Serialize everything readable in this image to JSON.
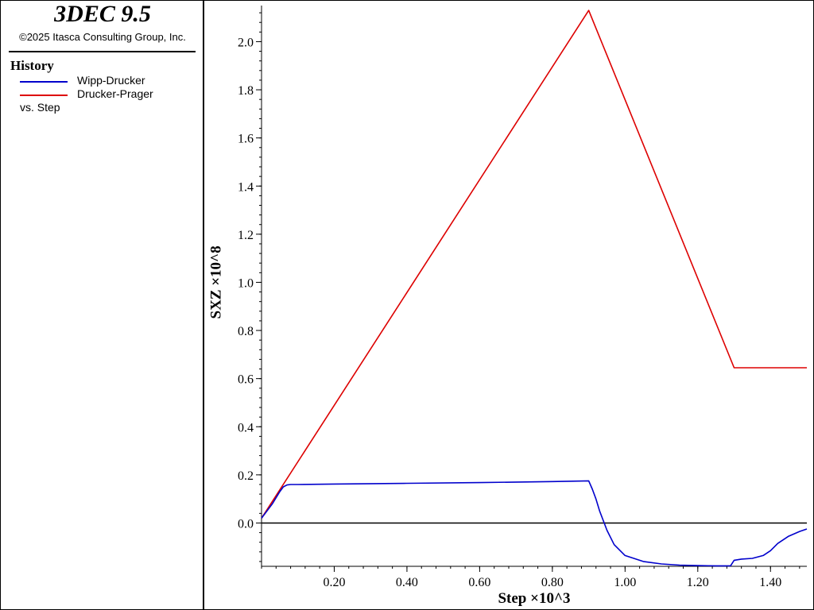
{
  "app": {
    "title": "3DEC 9.5",
    "copyright": "©2025 Itasca Consulting Group, Inc."
  },
  "legend": {
    "heading": "History",
    "items": [
      {
        "label": "Wipp-Drucker",
        "color": "#0000cc"
      },
      {
        "label": "Drucker-Prager",
        "color": "#dd0000"
      }
    ],
    "vs_label": "vs. Step"
  },
  "chart_data": {
    "type": "line",
    "xlabel": "Step ×10^3",
    "ylabel": "SXZ ×10^8",
    "xlim": [
      0.0,
      1.5
    ],
    "ylim": [
      -0.18,
      2.15
    ],
    "xticks": [
      0.2,
      0.4,
      0.6,
      0.8,
      1.0,
      1.2,
      1.4
    ],
    "xtick_labels": [
      "0.20",
      "0.40",
      "0.60",
      "0.80",
      "1.00",
      "1.20",
      "1.40"
    ],
    "yticks": [
      0.0,
      0.2,
      0.4,
      0.6,
      0.8,
      1.0,
      1.2,
      1.4,
      1.6,
      1.8,
      2.0
    ],
    "ytick_labels": [
      "0.0",
      "0.2",
      "0.4",
      "0.6",
      "0.8",
      "1.0",
      "1.2",
      "1.4",
      "1.6",
      "1.8",
      "2.0"
    ],
    "zero_line": true,
    "grid": false,
    "series": [
      {
        "name": "Drucker-Prager",
        "color": "#dd0000",
        "x": [
          0.0,
          0.9,
          1.3,
          1.5
        ],
        "y": [
          0.02,
          2.13,
          0.645,
          0.645
        ]
      },
      {
        "name": "Wipp-Drucker",
        "color": "#0000cc",
        "x": [
          0.0,
          0.03,
          0.05,
          0.06,
          0.07,
          0.08,
          0.1,
          0.2,
          0.4,
          0.6,
          0.8,
          0.9,
          0.91,
          0.92,
          0.93,
          0.94,
          0.95,
          0.97,
          1.0,
          1.05,
          1.1,
          1.15,
          1.2,
          1.25,
          1.29,
          1.3,
          1.32,
          1.35,
          1.38,
          1.4,
          1.42,
          1.45,
          1.48,
          1.5
        ],
        "y": [
          0.02,
          0.08,
          0.13,
          0.15,
          0.158,
          0.16,
          0.16,
          0.162,
          0.165,
          0.168,
          0.172,
          0.175,
          0.14,
          0.1,
          0.05,
          0.01,
          -0.03,
          -0.09,
          -0.135,
          -0.16,
          -0.17,
          -0.175,
          -0.177,
          -0.178,
          -0.178,
          -0.155,
          -0.15,
          -0.147,
          -0.135,
          -0.115,
          -0.085,
          -0.055,
          -0.035,
          -0.025
        ]
      }
    ]
  }
}
